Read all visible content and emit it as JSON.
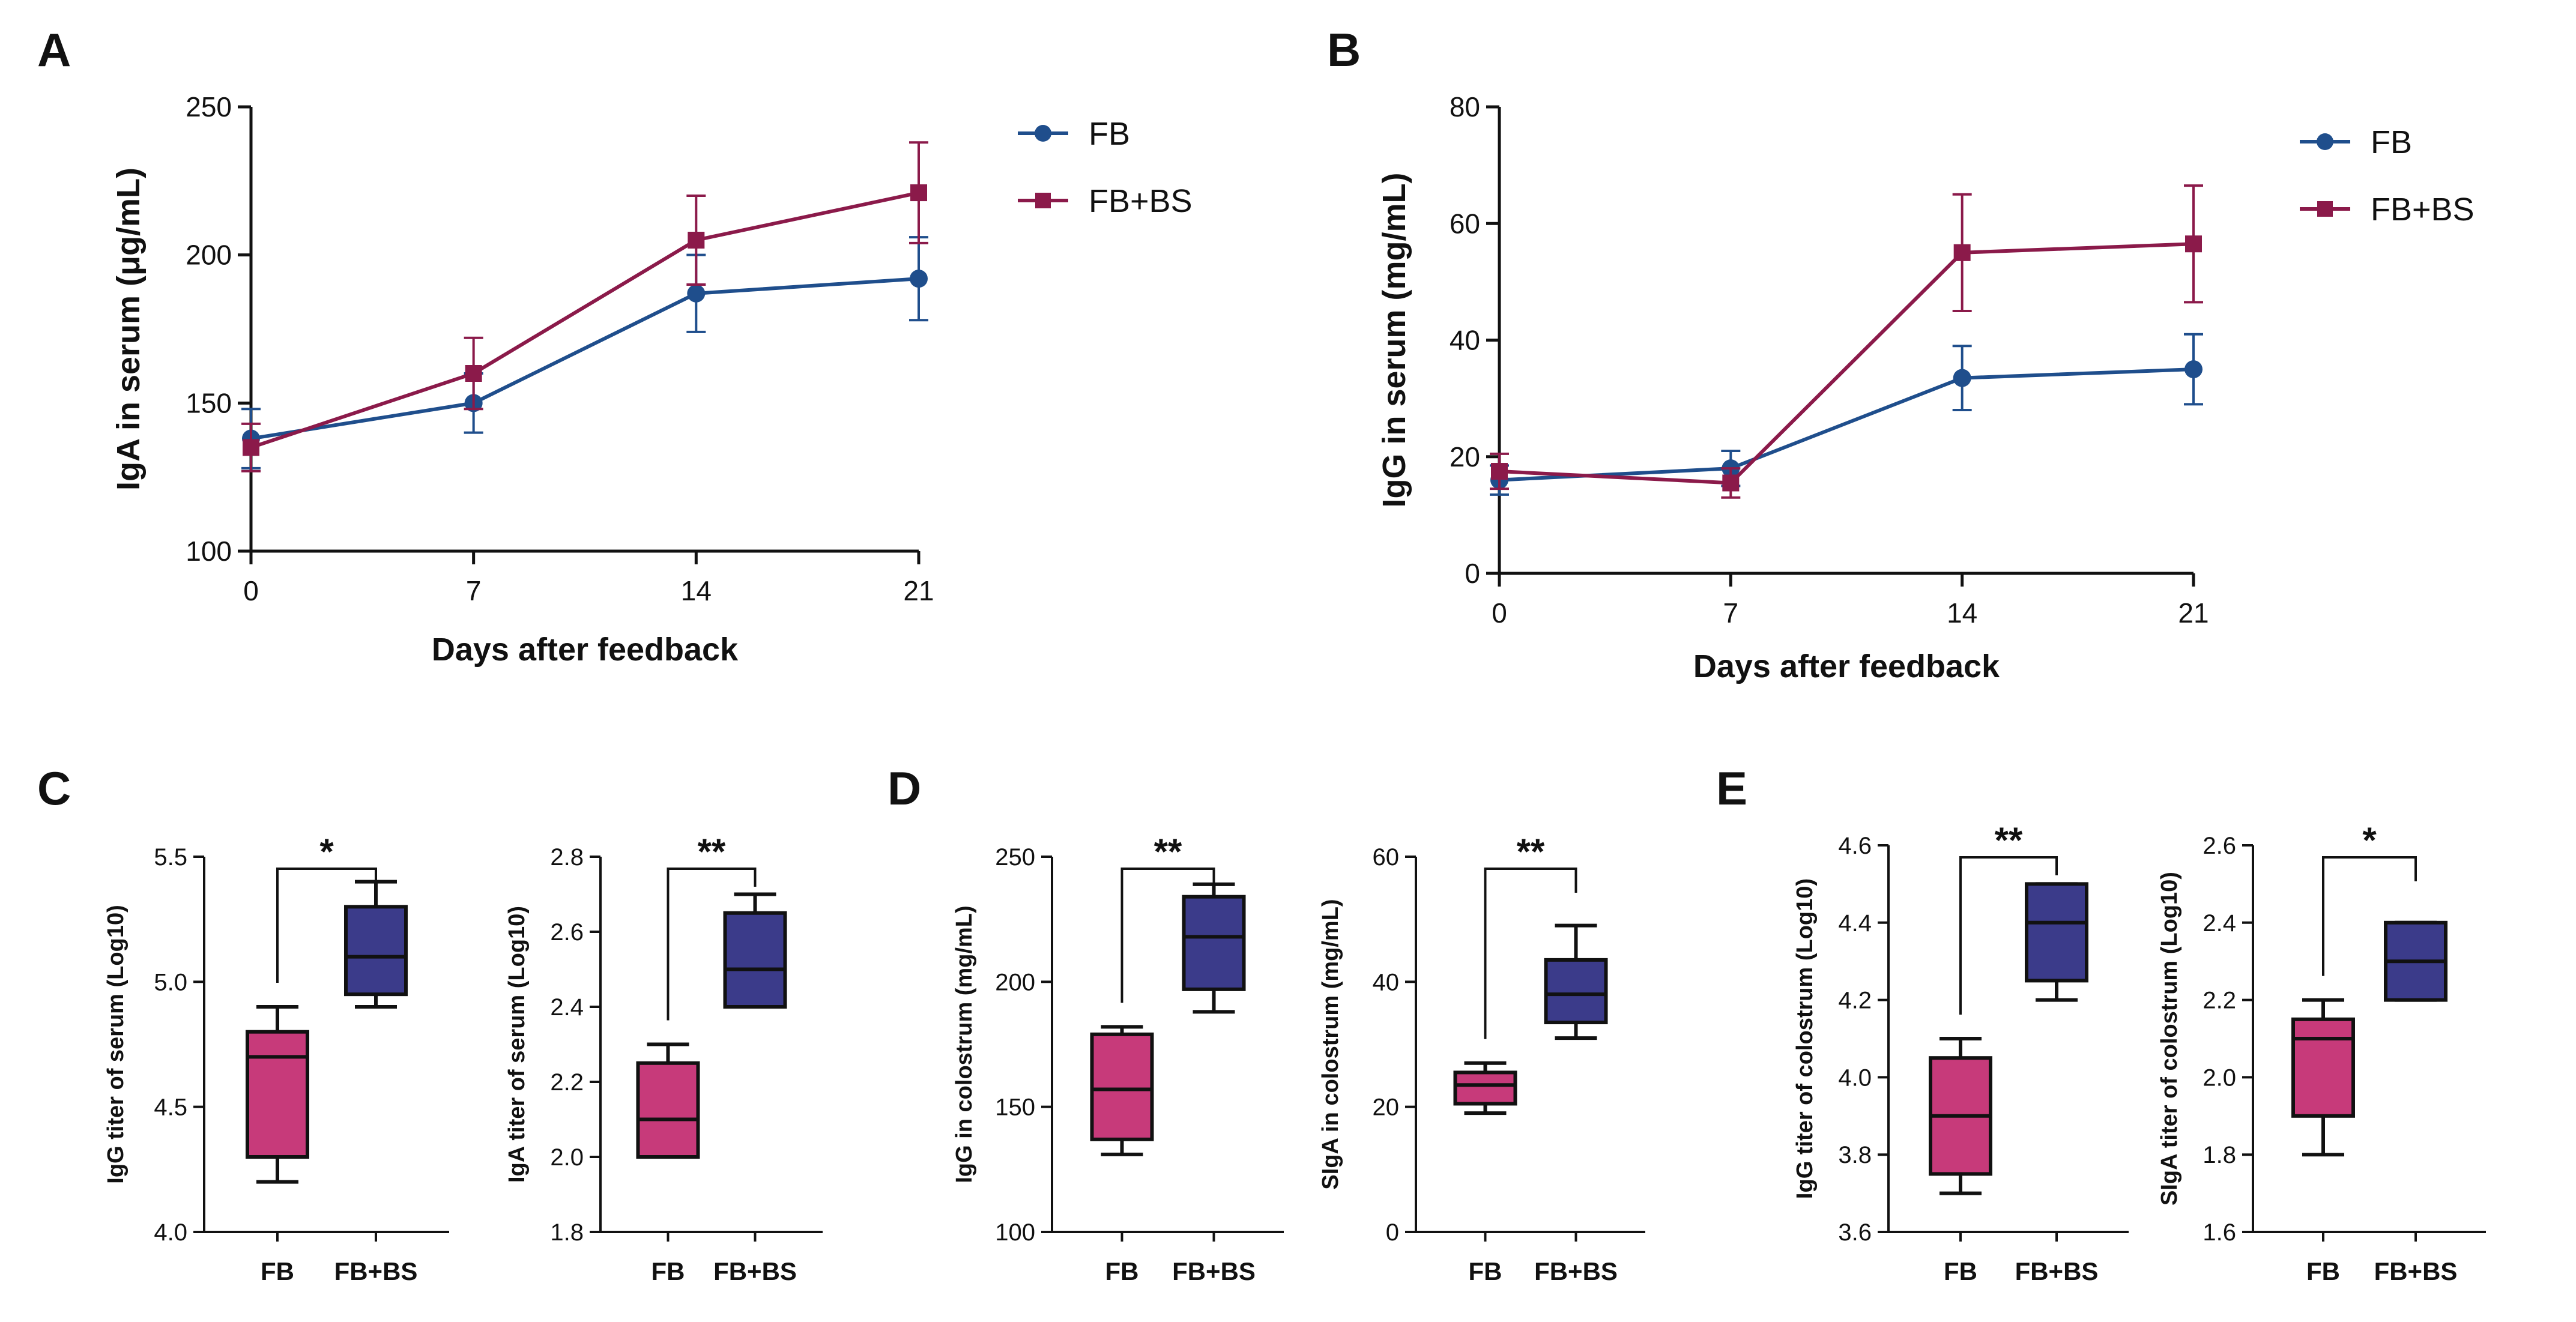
{
  "figure": {
    "panels": [
      {
        "letter": "A"
      },
      {
        "letter": "B"
      },
      {
        "letter": "C"
      },
      {
        "letter": "D"
      },
      {
        "letter": "E"
      }
    ]
  },
  "chart_data": [
    {
      "panel": "A",
      "type": "line",
      "xlabel": "Days after feedback",
      "ylabel": "IgA in serum (μg/mL)",
      "x": [
        0,
        7,
        14,
        21
      ],
      "xticks": [
        "0",
        "7",
        "14",
        "21"
      ],
      "ylim": [
        100,
        250
      ],
      "yticks": [
        100,
        150,
        200,
        250
      ],
      "legend_position": "top-right",
      "series": [
        {
          "name": "FB",
          "color": "#1f4e8c",
          "marker": "circle",
          "values": [
            138,
            150,
            187,
            192
          ],
          "errors": [
            10,
            10,
            13,
            14
          ]
        },
        {
          "name": "FB+BS",
          "color": "#8b1a4a",
          "marker": "square",
          "values": [
            135,
            160,
            205,
            221
          ],
          "errors": [
            8,
            12,
            15,
            17
          ]
        }
      ]
    },
    {
      "panel": "B",
      "type": "line",
      "xlabel": "Days after feedback",
      "ylabel": "IgG in serum (mg/mL)",
      "x": [
        0,
        7,
        14,
        21
      ],
      "xticks": [
        "0",
        "7",
        "14",
        "21"
      ],
      "ylim": [
        0,
        80
      ],
      "yticks": [
        0,
        20,
        40,
        60,
        80
      ],
      "legend_position": "top-right",
      "series": [
        {
          "name": "FB",
          "color": "#1f4e8c",
          "marker": "circle",
          "values": [
            16,
            18,
            33.5,
            35
          ],
          "errors": [
            2.5,
            3,
            5.5,
            6
          ]
        },
        {
          "name": "FB+BS",
          "color": "#8b1a4a",
          "marker": "square",
          "values": [
            17.5,
            15.5,
            55,
            56.5
          ],
          "errors": [
            3,
            2.5,
            10,
            10
          ]
        }
      ]
    },
    {
      "panel": "C",
      "type": "box",
      "ylabel": "IgG titer of serum (Log10)",
      "categories": [
        "FB",
        "FB+BS"
      ],
      "ylim": [
        4.0,
        5.5
      ],
      "yticks": [
        "4.0",
        "4.5",
        "5.0",
        "5.5"
      ],
      "significance": "*",
      "boxes": [
        {
          "min": 4.2,
          "q1": 4.3,
          "median": 4.7,
          "q3": 4.8,
          "max": 4.9,
          "color": "#c73a7a"
        },
        {
          "min": 4.9,
          "q1": 4.95,
          "median": 5.1,
          "q3": 5.3,
          "max": 5.4,
          "color": "#3b3b8a"
        }
      ]
    },
    {
      "panel": "C",
      "type": "box",
      "ylabel": "IgA titer of serum (Log10)",
      "categories": [
        "FB",
        "FB+BS"
      ],
      "ylim": [
        1.8,
        2.8
      ],
      "yticks": [
        "1.8",
        "2.0",
        "2.2",
        "2.4",
        "2.6",
        "2.8"
      ],
      "significance": "**",
      "boxes": [
        {
          "min": 2.0,
          "q1": 2.0,
          "median": 2.1,
          "q3": 2.25,
          "max": 2.3,
          "color": "#c73a7a"
        },
        {
          "min": 2.4,
          "q1": 2.4,
          "median": 2.5,
          "q3": 2.65,
          "max": 2.7,
          "color": "#3b3b8a"
        }
      ]
    },
    {
      "panel": "D",
      "type": "box",
      "ylabel": "IgG in colostrum (mg/mL)",
      "categories": [
        "FB",
        "FB+BS"
      ],
      "ylim": [
        100,
        250
      ],
      "yticks": [
        "100",
        "150",
        "200",
        "250"
      ],
      "significance": "**",
      "boxes": [
        {
          "min": 131,
          "q1": 137,
          "median": 157,
          "q3": 179,
          "max": 182,
          "color": "#c73a7a"
        },
        {
          "min": 188,
          "q1": 197,
          "median": 218,
          "q3": 234,
          "max": 239,
          "color": "#3b3b8a"
        }
      ]
    },
    {
      "panel": "D",
      "type": "box",
      "ylabel": "SIgA in colostrum (mg/mL)",
      "categories": [
        "FB",
        "FB+BS"
      ],
      "ylim": [
        0,
        60
      ],
      "yticks": [
        "0",
        "20",
        "40",
        "60"
      ],
      "significance": "**",
      "boxes": [
        {
          "min": 19,
          "q1": 20.5,
          "median": 23.5,
          "q3": 25.5,
          "max": 27,
          "color": "#c73a7a"
        },
        {
          "min": 31,
          "q1": 33.5,
          "median": 38,
          "q3": 43.5,
          "max": 49,
          "color": "#3b3b8a"
        }
      ]
    },
    {
      "panel": "E",
      "type": "box",
      "ylabel": "IgG titer of colostrum (Log10)",
      "categories": [
        "FB",
        "FB+BS"
      ],
      "ylim": [
        3.6,
        4.6
      ],
      "yticks": [
        "3.6",
        "3.8",
        "4.0",
        "4.2",
        "4.4",
        "4.6"
      ],
      "significance": "**",
      "boxes": [
        {
          "min": 3.7,
          "q1": 3.75,
          "median": 3.9,
          "q3": 4.05,
          "max": 4.1,
          "color": "#c73a7a"
        },
        {
          "min": 4.2,
          "q1": 4.25,
          "median": 4.4,
          "q3": 4.5,
          "max": 4.5,
          "color": "#3b3b8a"
        }
      ]
    },
    {
      "panel": "E",
      "type": "box",
      "ylabel": "SIgA titer of colostrum (Log10)",
      "categories": [
        "FB",
        "FB+BS"
      ],
      "ylim": [
        1.6,
        2.6
      ],
      "yticks": [
        "1.6",
        "1.8",
        "2.0",
        "2.2",
        "2.4",
        "2.6"
      ],
      "significance": "*",
      "boxes": [
        {
          "min": 1.8,
          "q1": 1.9,
          "median": 2.1,
          "q3": 2.15,
          "max": 2.2,
          "color": "#c73a7a"
        },
        {
          "min": 2.2,
          "q1": 2.2,
          "median": 2.3,
          "q3": 2.4,
          "max": 2.4,
          "color": "#3b3b8a"
        }
      ]
    }
  ]
}
